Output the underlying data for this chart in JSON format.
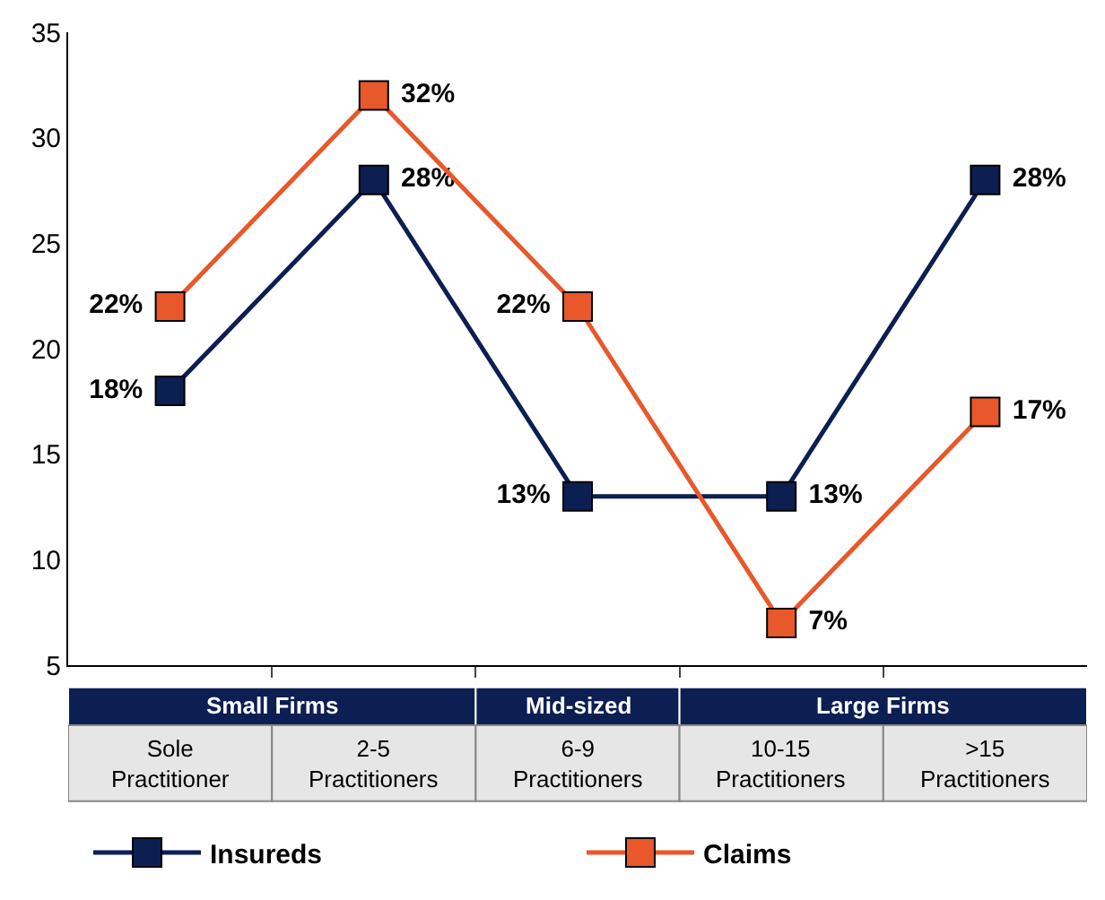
{
  "chart_data": {
    "type": "line",
    "categories": [
      "Sole Practitioner",
      "2-5 Practitioners",
      "6-9 Practitioners",
      "10-15 Practitioners",
      ">15 Practitioners"
    ],
    "series": [
      {
        "name": "Insureds",
        "color": "#0c1f52",
        "values": [
          18,
          28,
          13,
          13,
          28
        ],
        "value_labels": [
          "18%",
          "28%",
          "13%",
          "13%",
          "28%"
        ]
      },
      {
        "name": "Claims",
        "color": "#e8582a",
        "values": [
          22,
          32,
          22,
          7,
          17
        ],
        "value_labels": [
          "22%",
          "32%",
          "22%",
          "7%",
          "17%"
        ]
      }
    ],
    "annotations": [
      "Small Firms",
      "Mid-sized",
      "Large Firms"
    ],
    "ylim": [
      5,
      35
    ],
    "yticks": [
      5,
      10,
      15,
      20,
      25,
      30,
      35
    ],
    "marker": "square",
    "legend": "bottom"
  }
}
